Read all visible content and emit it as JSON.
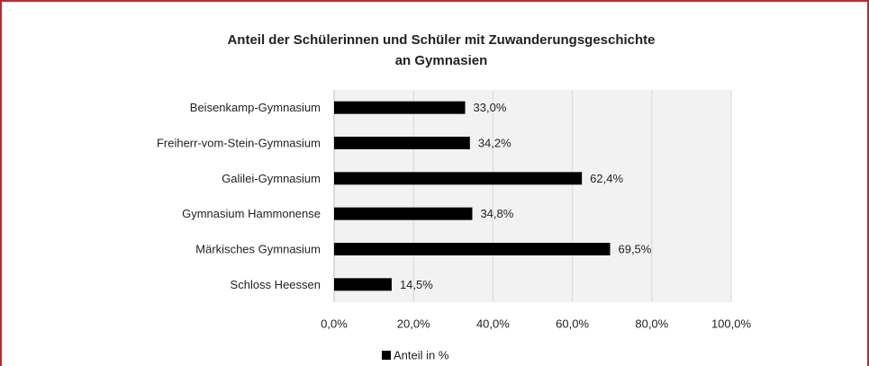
{
  "chart_data": {
    "type": "hbar",
    "title": [
      "Anteil der Schülerinnen und Schüler mit Zuwanderungsgeschichte",
      "an Gymnasien"
    ],
    "categories": [
      "Beisenkamp-Gymnasium",
      "Freiherr-vom-Stein-Gymnasium",
      "Galilei-Gymnasium",
      "Gymnasium Hammonense",
      "Märkisches Gymnasium",
      "Schloss Heessen"
    ],
    "series": [
      {
        "name": "Anteil in %",
        "color": "#000000",
        "values": [
          33.0,
          34.2,
          62.4,
          34.8,
          69.5,
          14.5
        ],
        "value_labels": [
          "33,0%",
          "34,2%",
          "62,4%",
          "34,8%",
          "69,5%",
          "14,5%"
        ]
      }
    ],
    "xlim": [
      0,
      100
    ],
    "xticks": [
      {
        "value": 0,
        "label": "0,0%"
      },
      {
        "value": 20,
        "label": "20,0%"
      },
      {
        "value": 40,
        "label": "40,0%"
      },
      {
        "value": 60,
        "label": "60,0%"
      },
      {
        "value": 80,
        "label": "80,0%"
      },
      {
        "value": 100,
        "label": "100,0%"
      }
    ],
    "grid": true,
    "legend": "bottom"
  }
}
